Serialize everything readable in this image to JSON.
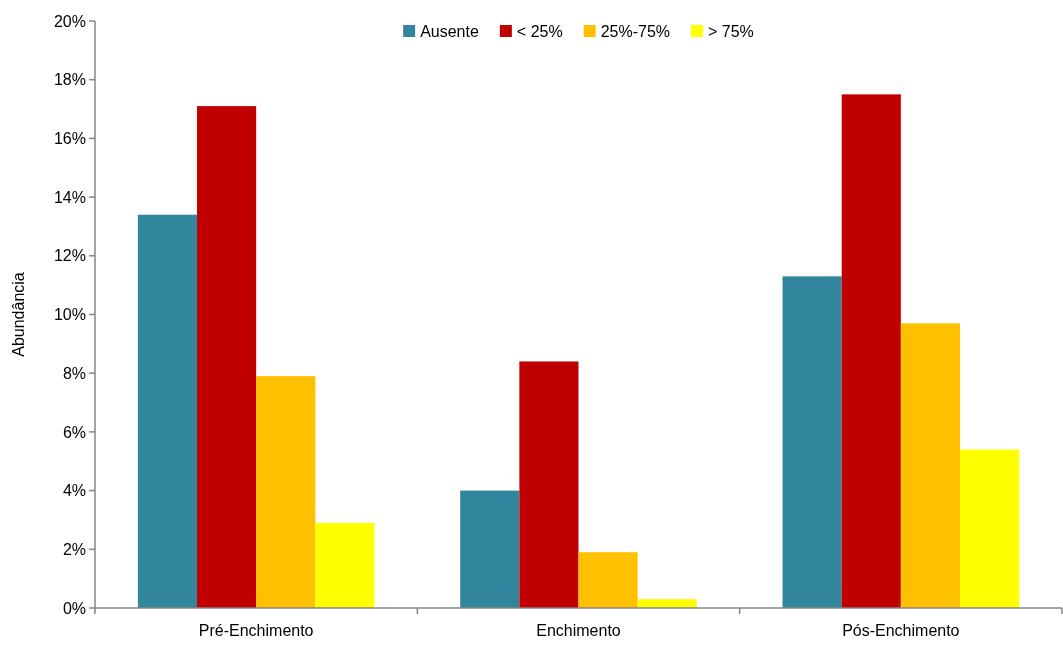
{
  "chart_data": {
    "type": "bar",
    "ylabel": "Abundância",
    "categories": [
      "Pré-Enchimento",
      "Enchimento",
      "Pós-Enchimento"
    ],
    "series": [
      {
        "name": "Ausente",
        "color": "#31859c",
        "values": [
          13.4,
          4.0,
          11.3
        ]
      },
      {
        "name": "< 25%",
        "color": "#c00000",
        "values": [
          17.1,
          8.4,
          17.5
        ]
      },
      {
        "name": "25%-75%",
        "color": "#ffc000",
        "values": [
          7.9,
          1.9,
          9.7
        ]
      },
      {
        "name": "> 75%",
        "color": "#ffff00",
        "values": [
          2.9,
          0.3,
          5.4
        ]
      }
    ],
    "ylim": [
      0,
      20
    ],
    "yticks": [
      {
        "value": 0,
        "label": "0%"
      },
      {
        "value": 2,
        "label": "2%"
      },
      {
        "value": 4,
        "label": "4%"
      },
      {
        "value": 6,
        "label": "6%"
      },
      {
        "value": 8,
        "label": "8%"
      },
      {
        "value": 10,
        "label": "10%"
      },
      {
        "value": 12,
        "label": "12%"
      },
      {
        "value": 14,
        "label": "14%"
      },
      {
        "value": 16,
        "label": "16%"
      },
      {
        "value": 18,
        "label": "18%"
      },
      {
        "value": 20,
        "label": "20%"
      }
    ],
    "legend": "top"
  }
}
